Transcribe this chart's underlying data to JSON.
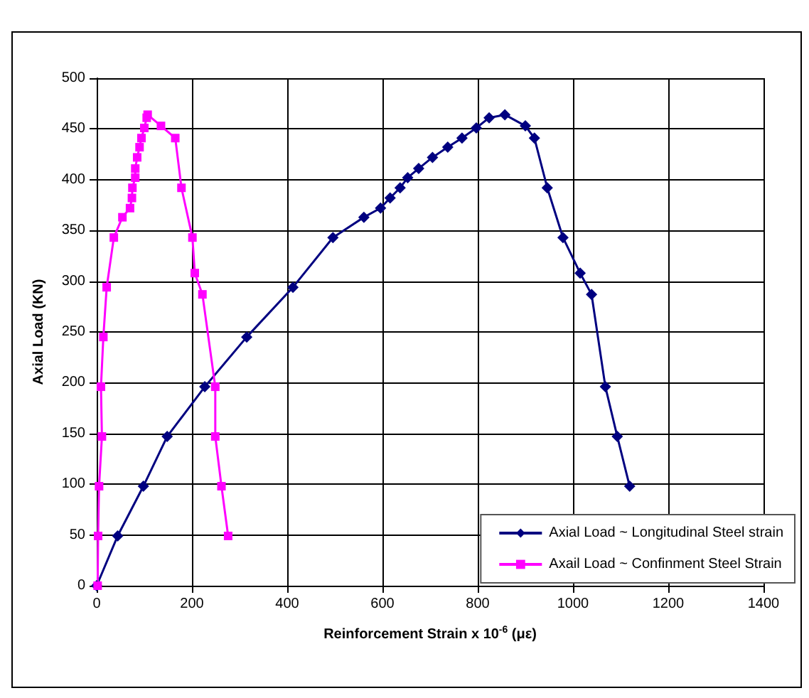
{
  "chart_data": {
    "type": "line",
    "xlabel": "Reinforcement Strain x 10$^{-6}$ (με)",
    "ylabel": "Axial Load (KN)",
    "xlim": [
      0,
      1400
    ],
    "xticks": [
      0,
      200,
      400,
      600,
      800,
      1000,
      1200,
      1400
    ],
    "ylim": [
      0,
      500
    ],
    "yticks": [
      0,
      50,
      100,
      150,
      200,
      250,
      300,
      350,
      400,
      450,
      500
    ],
    "grid": true,
    "legend": "bottom right",
    "series": [
      {
        "name": "Axial Load ~ Longitudinal Steel strain",
        "color": "#000080",
        "marker": "diamond",
        "x": [
          0,
          44,
          98,
          148,
          227,
          315,
          412,
          496,
          561,
          596,
          616,
          637,
          653,
          676,
          705,
          737,
          767,
          797,
          824,
          857,
          900,
          919,
          946,
          979,
          1015,
          1039,
          1068,
          1093,
          1119
        ],
        "values": [
          0,
          49,
          98,
          147,
          196,
          245,
          294,
          343,
          363,
          372,
          382,
          392,
          402,
          411,
          422,
          432,
          441,
          451,
          461,
          464,
          453,
          441,
          392,
          343,
          308,
          287,
          196,
          147,
          98
        ]
      },
      {
        "name": "Axail Load ~ Confinment Steel Strain",
        "color": "#ff00ff",
        "marker": "square",
        "x": [
          2,
          3,
          5,
          11,
          9,
          14,
          21,
          36,
          54,
          70,
          74,
          75,
          81,
          81,
          85,
          90,
          94,
          100,
          105,
          107,
          135,
          165,
          178,
          201,
          206,
          222,
          249,
          249,
          262,
          276
        ],
        "values": [
          0,
          49,
          98,
          147,
          196,
          245,
          294,
          343,
          363,
          372,
          382,
          392,
          402,
          411,
          422,
          432,
          441,
          451,
          461,
          464,
          453,
          441,
          392,
          343,
          308,
          287,
          196,
          147,
          98,
          49
        ]
      }
    ]
  }
}
